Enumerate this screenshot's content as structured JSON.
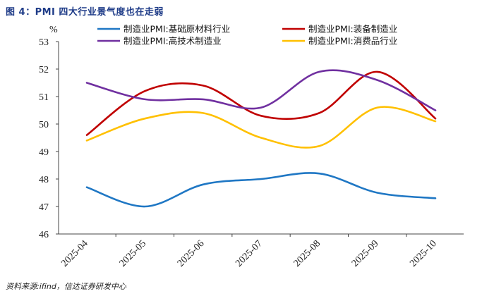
{
  "title": "图 4：PMI 四大行业景气度也在走弱",
  "source": "资料来源:ifind，信达证券研发中心",
  "chart_data": {
    "type": "line",
    "ylabel": "%",
    "ylim": [
      46,
      53
    ],
    "yticks": [
      46,
      47,
      48,
      49,
      50,
      51,
      52,
      53
    ],
    "categories": [
      "2025-04",
      "2025-05",
      "2025-06",
      "2025-07",
      "2025-08",
      "2025-09",
      "2025-10"
    ],
    "grid": false,
    "legend_position": "top",
    "series": [
      {
        "name": "制造业PMI:基础原材料行业",
        "color": "#1f77c4",
        "values": [
          47.7,
          47.0,
          47.8,
          48.0,
          48.2,
          47.5,
          47.3
        ]
      },
      {
        "name": "制造业PMI:装备制造业",
        "color": "#c00000",
        "values": [
          49.6,
          51.2,
          51.4,
          50.3,
          50.4,
          51.9,
          50.2
        ]
      },
      {
        "name": "制造业PMI:高技术制造业",
        "color": "#7030a0",
        "values": [
          51.5,
          50.9,
          50.9,
          50.6,
          51.9,
          51.6,
          50.5
        ]
      },
      {
        "name": "制造业PMI:消费品行业",
        "color": "#ffc000",
        "values": [
          49.4,
          50.2,
          50.4,
          49.5,
          49.2,
          50.6,
          50.1
        ]
      }
    ]
  }
}
